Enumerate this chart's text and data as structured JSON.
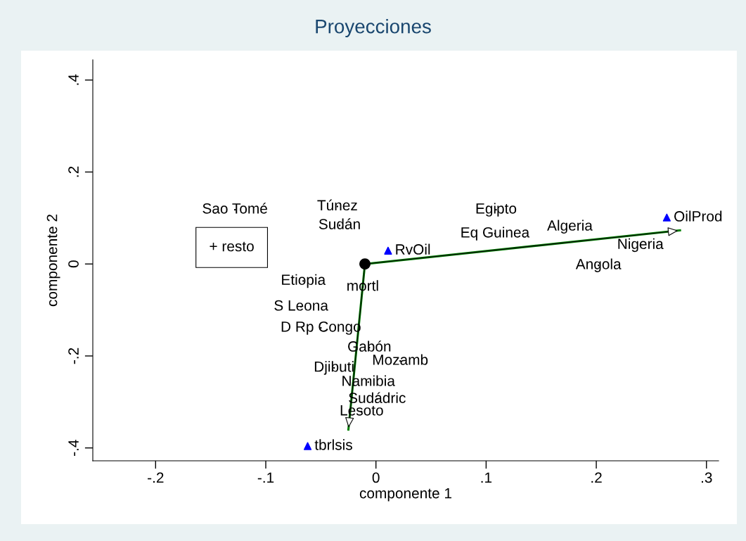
{
  "chart_data": {
    "type": "scatter",
    "title": "Proyecciones",
    "xlabel": "componente 1",
    "ylabel": "componente 2",
    "xlim": [
      -0.257,
      0.311
    ],
    "ylim": [
      -0.428,
      0.444
    ],
    "xticks": [
      {
        "value": -0.2,
        "label": "-.2"
      },
      {
        "value": -0.1,
        "label": "-.1"
      },
      {
        "value": 0,
        "label": "0"
      },
      {
        "value": 0.1,
        "label": ".1"
      },
      {
        "value": 0.2,
        "label": ".2"
      },
      {
        "value": 0.3,
        "label": ".3"
      }
    ],
    "yticks": [
      {
        "value": -0.4,
        "label": "-.4"
      },
      {
        "value": -0.2,
        "label": "-.2"
      },
      {
        "value": 0,
        "label": "0"
      },
      {
        "value": 0.2,
        "label": ".2"
      },
      {
        "value": 0.4,
        "label": ".4"
      }
    ],
    "series": [
      {
        "type": "line",
        "color": "#008000",
        "x": [
          -0.01,
          0.276
        ],
        "values": [
          0,
          0.073
        ]
      },
      {
        "type": "line",
        "color": "#008000",
        "x": [
          -0.01,
          -0.025
        ],
        "values": [
          0,
          -0.36
        ]
      },
      {
        "type": "scatter",
        "marker": "circle",
        "color": "#000000",
        "x": [
          -0.01
        ],
        "values": [
          0
        ]
      },
      {
        "type": "scatter",
        "marker": "triangle",
        "name": "OilProd",
        "color": "#0000ff",
        "x": [
          0.264
        ],
        "values": [
          0.101
        ]
      },
      {
        "type": "scatter",
        "marker": "triangle",
        "name": "RvOil",
        "color": "#0000ff",
        "x": [
          0.011
        ],
        "values": [
          0.029
        ]
      },
      {
        "type": "scatter",
        "marker": "triangle",
        "name": "tbrlsis",
        "color": "#0000ff",
        "x": [
          -0.062
        ],
        "values": [
          -0.396
        ]
      },
      {
        "marker": "none",
        "color": "#000000",
        "x": [
          -0.128,
          -0.035,
          -0.033,
          0.109,
          0.108,
          0.176,
          0.24,
          0.202,
          -0.066,
          -0.012,
          -0.068,
          -0.05,
          -0.006,
          0.022,
          -0.038,
          -0.007,
          0.001,
          -0.013
        ],
        "values": [
          0.118,
          0.125,
          0.084,
          0.118,
          0.066,
          0.081,
          0.041,
          -0.003,
          -0.037,
          -0.05,
          -0.093,
          -0.139,
          -0.182,
          -0.211,
          -0.226,
          -0.257,
          -0.294,
          -0.321
        ],
        "value_labels": [
          "Sao Tomé",
          "Túnez",
          "Sudán",
          "Egipto",
          "Eq Guinea",
          "Algeria",
          "Nigeria",
          "Angola",
          "Etiopia",
          "mortl",
          "S Leona",
          "D Rp Congo",
          "Gabón",
          "Mozamb",
          "Djibuti",
          "Namibia",
          "Sudádric",
          "Lesoto"
        ]
      }
    ],
    "annotations": [
      "+ resto"
    ]
  }
}
